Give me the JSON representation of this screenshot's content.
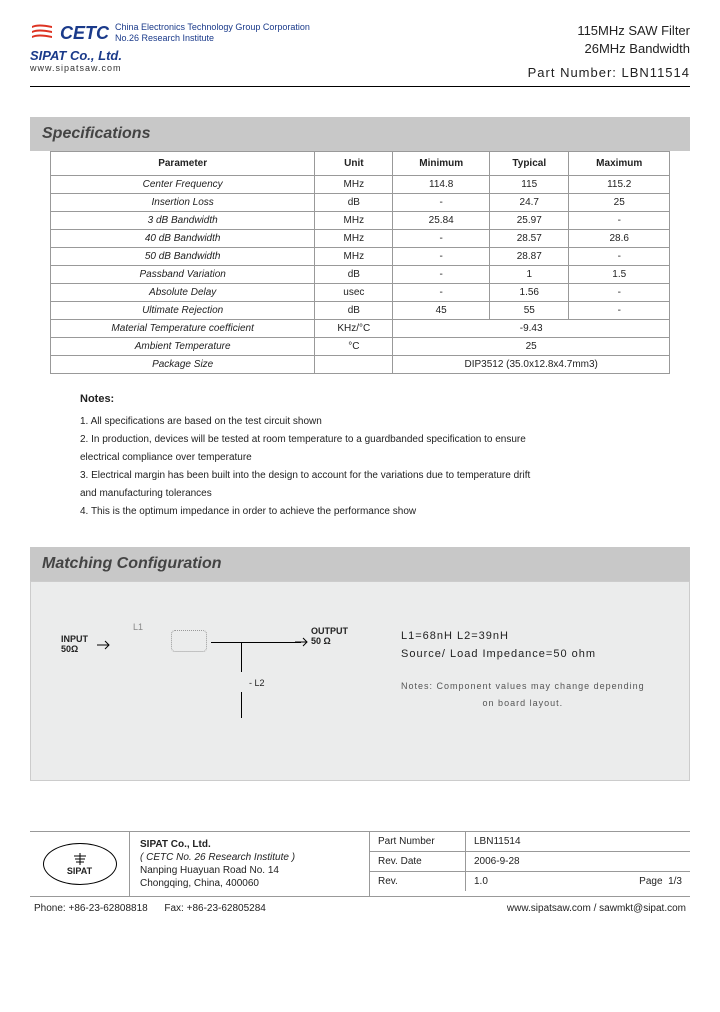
{
  "header": {
    "cetc": "CETC",
    "cetc_line1": "China Electronics Technology Group Corporation",
    "cetc_line2": "No.26 Research Institute",
    "sipat": "SIPAT Co., Ltd.",
    "url": "www.sipatsaw.com",
    "title1": "115MHz SAW Filter",
    "title2": "26MHz Bandwidth",
    "part_label": "Part Number: LBN11514"
  },
  "spec": {
    "title": "Specifications",
    "headers": [
      "Parameter",
      "Unit",
      "Minimum",
      "Typical",
      "Maximum"
    ],
    "rows": [
      [
        "Center Frequency",
        "MHz",
        "114.8",
        "115",
        "115.2"
      ],
      [
        "Insertion Loss",
        "dB",
        "-",
        "24.7",
        "25"
      ],
      [
        "3 dB Bandwidth",
        "MHz",
        "25.84",
        "25.97",
        "-"
      ],
      [
        "40 dB Bandwidth",
        "MHz",
        "-",
        "28.57",
        "28.6"
      ],
      [
        "50 dB Bandwidth",
        "MHz",
        "-",
        "28.87",
        "-"
      ],
      [
        "Passband Variation",
        "dB",
        "-",
        "1",
        "1.5"
      ],
      [
        "Absolute Delay",
        "usec",
        "-",
        "1.56",
        "-"
      ],
      [
        "Ultimate Rejection",
        "dB",
        "45",
        "55",
        "-"
      ]
    ],
    "merged": [
      {
        "param": "Material Temperature coefficient",
        "unit": "KHz/°C",
        "value": "-9.43"
      },
      {
        "param": "Ambient Temperature",
        "unit": "°C",
        "value": "25"
      },
      {
        "param": "Package Size",
        "unit": "",
        "value": "DIP3512   (35.0x12.8x4.7mm3)"
      }
    ]
  },
  "notes": {
    "title": "Notes:",
    "items": [
      "1. All specifications are based on the test circuit shown",
      "2. In production, devices will be tested at room temperature to a guardbanded specification to ensure",
      "electrical compliance over temperature",
      "3. Electrical margin has been built into the design to account for the variations due to temperature drift",
      "and manufacturing tolerances",
      "4. This is the optimum impedance in order to achieve the performance show"
    ]
  },
  "matching": {
    "title": "Matching Configuration",
    "input": "INPUT",
    "input_imp": "50Ω",
    "output": "OUTPUT",
    "output_imp": "50 Ω",
    "l1": "L1",
    "l2": "L2",
    "vals": "L1=68nH    L2=39nH",
    "imp": "Source/ Load Impedance=50 ohm",
    "note1": "Notes:  Component values may change depending",
    "note2": "on board layout."
  },
  "footer": {
    "sipat": "SIPAT",
    "company": "SIPAT Co., Ltd.",
    "inst": "( CETC No. 26 Research Institute )",
    "addr1": "Nanping Huayuan Road No. 14",
    "addr2": "Chongqing, China, 400060",
    "pn_label": "Part Number",
    "pn": "LBN11514",
    "date_label": "Rev. Date",
    "date": "2006-9-28",
    "rev_label": "Rev.",
    "rev": "1.0",
    "page_label": "Page",
    "page": "1/3",
    "phone": "Phone: +86-23-62808818",
    "fax": "Fax: +86-23-62805284",
    "web": "www.sipatsaw.com / sawmkt@sipat.com"
  }
}
